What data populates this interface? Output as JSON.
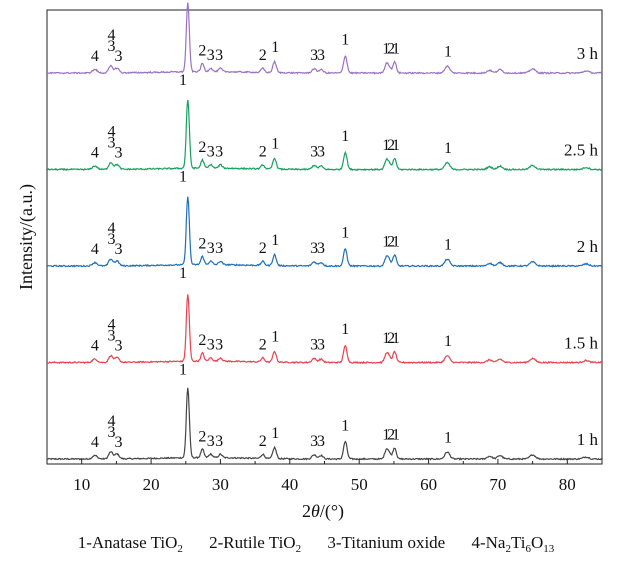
{
  "chart_data": {
    "type": "line",
    "xlabel_parts": [
      "2",
      "θ",
      "/(°)"
    ],
    "ylabel": "Intensity/(a.u.)",
    "xlim": [
      5,
      85
    ],
    "xticks": [
      10,
      20,
      30,
      40,
      50,
      60,
      70,
      80
    ],
    "xtick_labels": [
      "10",
      "20",
      "30",
      "40",
      "50",
      "60",
      "70",
      "80"
    ],
    "grid": false,
    "series": [
      {
        "name": "1 h",
        "color": "#444444",
        "baseline_intensity": 0.0,
        "peak_scale": 1.0
      },
      {
        "name": "1.5 h",
        "color": "#e8424f",
        "baseline_intensity": 1.0,
        "peak_scale": 0.96
      },
      {
        "name": "2 h",
        "color": "#1f6fb8",
        "baseline_intensity": 2.0,
        "peak_scale": 0.98
      },
      {
        "name": "2.5 h",
        "color": "#16a05e",
        "baseline_intensity": 3.0,
        "peak_scale": 0.98
      },
      {
        "name": "3 h",
        "color": "#9a72c2",
        "baseline_intensity": 4.0,
        "peak_scale": 0.98
      }
    ],
    "peaks": [
      {
        "two_theta": 11.9,
        "intensity": 0.05,
        "width": 0.35
      },
      {
        "two_theta": 14.2,
        "intensity": 0.1,
        "width": 0.3
      },
      {
        "two_theta": 15.1,
        "intensity": 0.07,
        "width": 0.3
      },
      {
        "two_theta": 25.3,
        "intensity": 1.0,
        "width": 0.22
      },
      {
        "two_theta": 27.4,
        "intensity": 0.12,
        "width": 0.22
      },
      {
        "two_theta": 28.6,
        "intensity": 0.05,
        "width": 0.25
      },
      {
        "two_theta": 30.0,
        "intensity": 0.05,
        "width": 0.25
      },
      {
        "two_theta": 36.1,
        "intensity": 0.06,
        "width": 0.25
      },
      {
        "two_theta": 37.8,
        "intensity": 0.16,
        "width": 0.25
      },
      {
        "two_theta": 43.5,
        "intensity": 0.06,
        "width": 0.3
      },
      {
        "two_theta": 44.5,
        "intensity": 0.05,
        "width": 0.3
      },
      {
        "two_theta": 48.0,
        "intensity": 0.25,
        "width": 0.25
      },
      {
        "two_theta": 53.9,
        "intensity": 0.12,
        "width": 0.25
      },
      {
        "two_theta": 54.3,
        "intensity": 0.08,
        "width": 0.25
      },
      {
        "two_theta": 55.1,
        "intensity": 0.16,
        "width": 0.25
      },
      {
        "two_theta": 62.7,
        "intensity": 0.1,
        "width": 0.35
      },
      {
        "two_theta": 68.8,
        "intensity": 0.04,
        "width": 0.35
      },
      {
        "two_theta": 70.3,
        "intensity": 0.05,
        "width": 0.35
      },
      {
        "two_theta": 75.0,
        "intensity": 0.06,
        "width": 0.4
      },
      {
        "two_theta": 82.7,
        "intensity": 0.03,
        "width": 0.4
      }
    ],
    "peak_annotations": [
      {
        "text": "4",
        "two_theta": 11.9,
        "offset": 0.16
      },
      {
        "text": "4",
        "two_theta": 14.3,
        "offset": 0.44
      },
      {
        "text": "3",
        "two_theta": 14.3,
        "offset": 0.29
      },
      {
        "text": "3",
        "two_theta": 15.3,
        "offset": 0.16
      },
      {
        "text": "1",
        "two_theta": 24.6,
        "offset": 1.12
      },
      {
        "text": "2",
        "two_theta": 27.4,
        "offset": 0.23
      },
      {
        "text": "3",
        "two_theta": 28.6,
        "offset": 0.17
      },
      {
        "text": "3",
        "two_theta": 29.8,
        "offset": 0.17
      },
      {
        "text": "2",
        "two_theta": 36.1,
        "offset": 0.17
      },
      {
        "text": "1",
        "two_theta": 37.9,
        "offset": 0.28
      },
      {
        "text": "3",
        "two_theta": 43.5,
        "offset": 0.17
      },
      {
        "text": "3",
        "two_theta": 44.5,
        "offset": 0.17
      },
      {
        "text": "1",
        "two_theta": 48.0,
        "offset": 0.38
      },
      {
        "text": "1",
        "two_theta": 53.9,
        "offset": 0.26
      },
      {
        "text": "2",
        "two_theta": 54.6,
        "offset": 0.26
      },
      {
        "text": "1",
        "two_theta": 55.3,
        "offset": 0.26
      },
      {
        "text": "1",
        "two_theta": 62.8,
        "offset": 0.22
      }
    ]
  },
  "legend": [
    {
      "prefix": "1-Anatase TiO",
      "sub1": "2",
      "mid": "",
      "sub2": "",
      "tail": ""
    },
    {
      "prefix": "2-Rutile TiO",
      "sub1": "2",
      "mid": "",
      "sub2": "",
      "tail": ""
    },
    {
      "prefix": "3-Titanium oxide",
      "sub1": "",
      "mid": "",
      "sub2": "",
      "tail": ""
    },
    {
      "prefix": "4-Na",
      "sub1": "2",
      "mid": "Ti",
      "sub2": "6",
      "tail": "O",
      "sub3": "13"
    }
  ]
}
